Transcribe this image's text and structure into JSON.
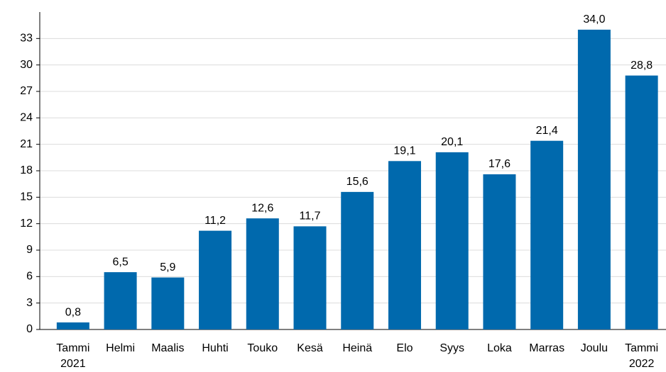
{
  "chart_data": {
    "type": "bar",
    "categories": [
      [
        "Tammi",
        "2021"
      ],
      [
        "Helmi"
      ],
      [
        "Maalis"
      ],
      [
        "Huhti"
      ],
      [
        "Touko"
      ],
      [
        "Kesä"
      ],
      [
        "Heinä"
      ],
      [
        "Elo"
      ],
      [
        "Syys"
      ],
      [
        "Loka"
      ],
      [
        "Marras"
      ],
      [
        "Joulu"
      ],
      [
        "Tammi",
        "2022"
      ]
    ],
    "values": [
      0.8,
      6.5,
      5.9,
      11.2,
      12.6,
      11.7,
      15.6,
      19.1,
      20.1,
      17.6,
      21.4,
      34.0,
      28.8
    ],
    "value_labels": [
      "0,8",
      "6,5",
      "5,9",
      "11,2",
      "12,6",
      "11,7",
      "15,6",
      "19,1",
      "20,1",
      "17,6",
      "21,4",
      "34,0",
      "28,8"
    ],
    "color": "#0069ad",
    "ylim": [
      0,
      36
    ],
    "yticks": [
      0,
      3,
      6,
      9,
      12,
      15,
      18,
      21,
      24,
      27,
      30,
      33
    ],
    "grid": true
  }
}
